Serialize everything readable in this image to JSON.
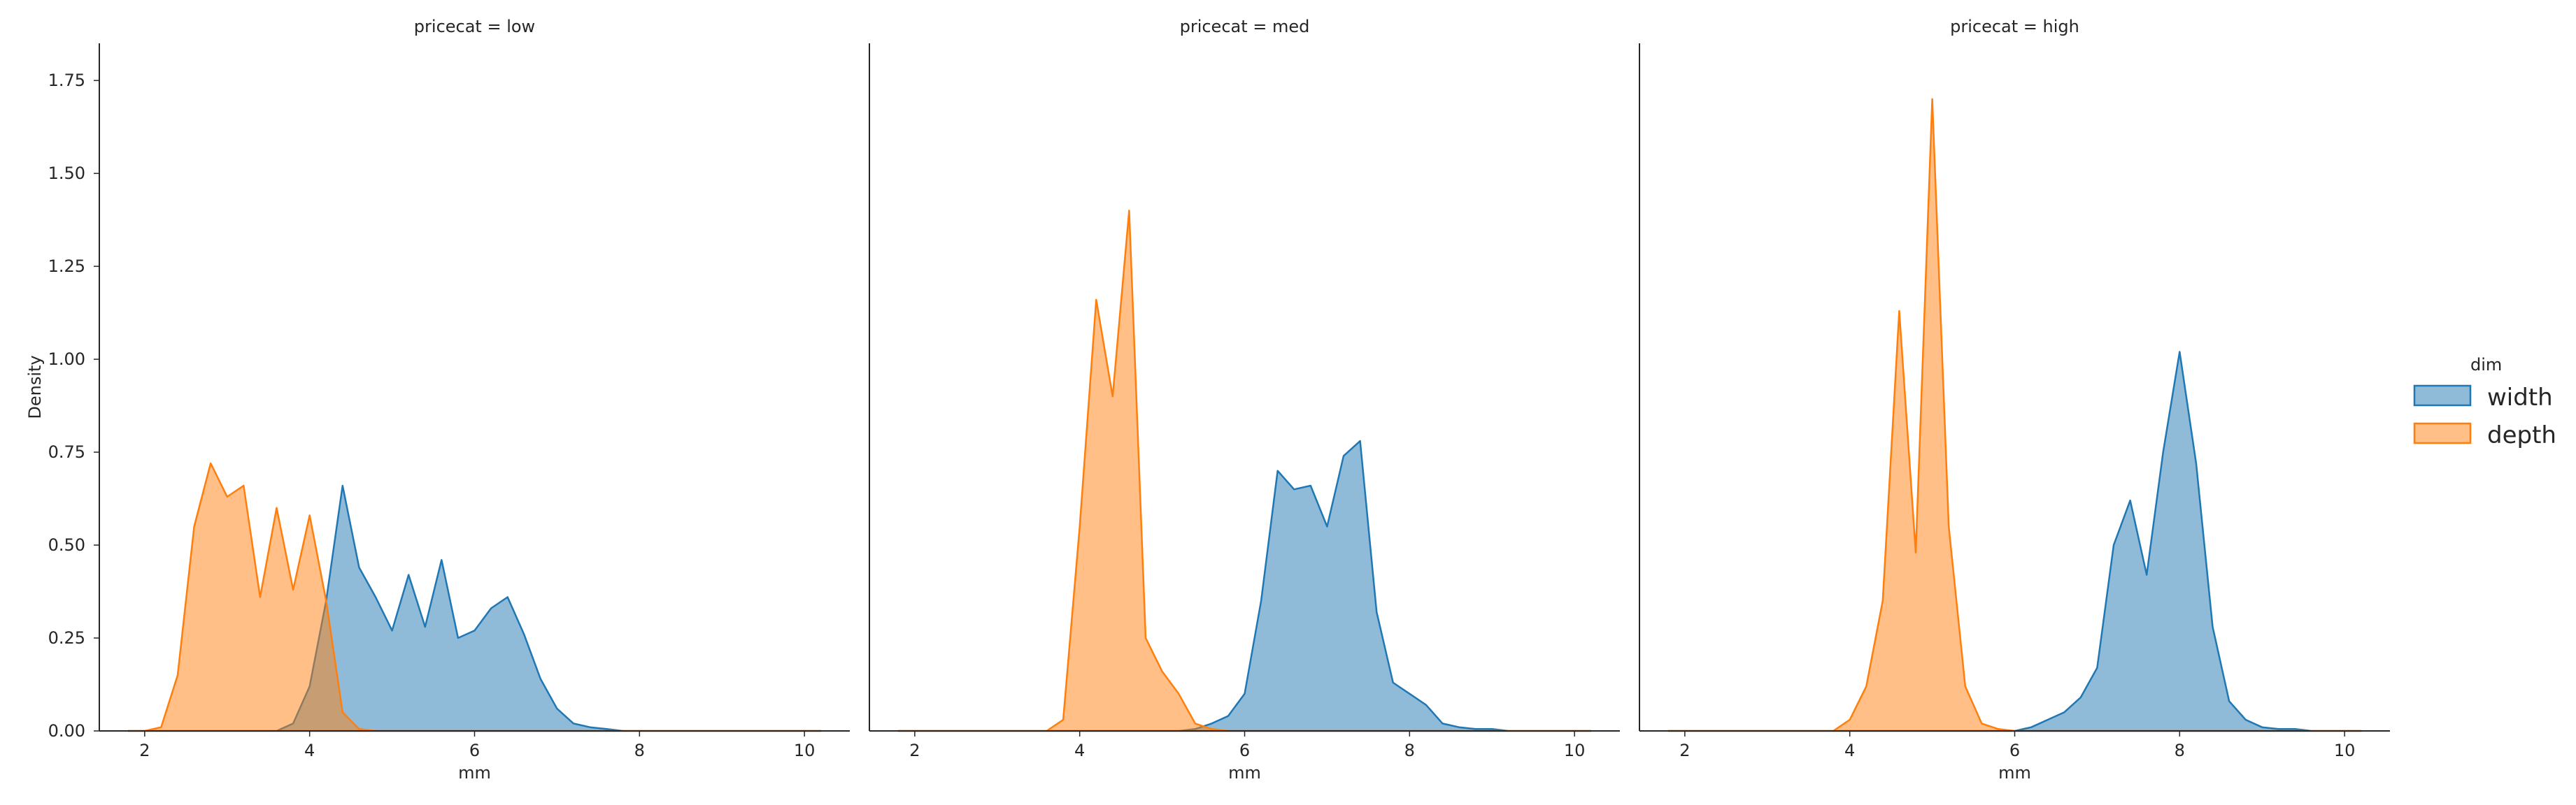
{
  "chart_data": {
    "type": "area",
    "x": [
      1.8,
      2.0,
      2.2,
      2.4,
      2.6,
      2.8,
      3.0,
      3.2,
      3.4,
      3.6,
      3.8,
      4.0,
      4.2,
      4.4,
      4.6,
      4.8,
      5.0,
      5.2,
      5.4,
      5.6,
      5.8,
      6.0,
      6.2,
      6.4,
      6.6,
      6.8,
      7.0,
      7.2,
      7.4,
      7.6,
      7.8,
      8.0,
      8.2,
      8.4,
      8.6,
      8.8,
      9.0,
      9.2,
      9.4,
      9.6,
      9.8,
      10.0,
      10.2
    ],
    "xlabel": "mm",
    "ylabel": "Density",
    "xlim": [
      1.45,
      10.55
    ],
    "ylim": [
      0,
      1.85
    ],
    "xticks": [
      "2",
      "4",
      "6",
      "8",
      "10"
    ],
    "yticks": [
      "0.00",
      "0.25",
      "0.50",
      "0.75",
      "1.00",
      "1.25",
      "1.50",
      "1.75"
    ],
    "grid": false,
    "legend": {
      "title": "dim",
      "placement": "right",
      "entries": [
        {
          "label": "width",
          "color": "#1f77b4"
        },
        {
          "label": "depth",
          "color": "#ff7f0e"
        }
      ]
    },
    "panels": [
      {
        "title": "pricecat = low",
        "series": [
          {
            "name": "width",
            "color": "#1f77b4",
            "values": [
              0,
              0,
              0,
              0,
              0,
              0,
              0,
              0,
              0,
              0,
              0.02,
              0.12,
              0.35,
              0.66,
              0.44,
              0.36,
              0.27,
              0.42,
              0.28,
              0.46,
              0.25,
              0.27,
              0.33,
              0.36,
              0.26,
              0.14,
              0.06,
              0.02,
              0.01,
              0.005,
              0,
              0,
              0,
              0,
              0,
              0,
              0,
              0,
              0,
              0,
              0,
              0,
              0
            ]
          },
          {
            "name": "depth",
            "color": "#ff7f0e",
            "values": [
              0,
              0,
              0.01,
              0.15,
              0.55,
              0.72,
              0.63,
              0.66,
              0.36,
              0.6,
              0.38,
              0.58,
              0.35,
              0.05,
              0.005,
              0,
              0,
              0,
              0,
              0,
              0,
              0,
              0,
              0,
              0,
              0,
              0,
              0,
              0,
              0,
              0,
              0,
              0,
              0,
              0,
              0,
              0,
              0,
              0,
              0,
              0,
              0,
              0
            ]
          }
        ]
      },
      {
        "title": "pricecat = med",
        "series": [
          {
            "name": "width",
            "color": "#1f77b4",
            "values": [
              0,
              0,
              0,
              0,
              0,
              0,
              0,
              0,
              0,
              0,
              0,
              0,
              0,
              0,
              0,
              0,
              0,
              0,
              0.005,
              0.02,
              0.04,
              0.1,
              0.35,
              0.7,
              0.65,
              0.66,
              0.55,
              0.74,
              0.78,
              0.32,
              0.13,
              0.1,
              0.07,
              0.02,
              0.01,
              0.005,
              0.005,
              0,
              0,
              0,
              0,
              0,
              0
            ]
          },
          {
            "name": "depth",
            "color": "#ff7f0e",
            "values": [
              0,
              0,
              0,
              0,
              0,
              0,
              0,
              0,
              0,
              0,
              0.03,
              0.55,
              1.16,
              0.9,
              1.4,
              0.25,
              0.16,
              0.1,
              0.02,
              0.005,
              0,
              0,
              0,
              0,
              0,
              0,
              0,
              0,
              0,
              0,
              0,
              0,
              0,
              0,
              0,
              0,
              0,
              0,
              0,
              0,
              0,
              0,
              0
            ]
          }
        ]
      },
      {
        "title": "pricecat = high",
        "series": [
          {
            "name": "width",
            "color": "#1f77b4",
            "values": [
              0,
              0,
              0,
              0,
              0,
              0,
              0,
              0,
              0,
              0,
              0,
              0,
              0,
              0,
              0,
              0,
              0,
              0,
              0,
              0,
              0,
              0,
              0.01,
              0.03,
              0.05,
              0.09,
              0.17,
              0.5,
              0.62,
              0.42,
              0.75,
              1.02,
              0.72,
              0.28,
              0.08,
              0.03,
              0.01,
              0.005,
              0.005,
              0,
              0,
              0,
              0
            ]
          },
          {
            "name": "depth",
            "color": "#ff7f0e",
            "values": [
              0,
              0,
              0,
              0,
              0,
              0,
              0,
              0,
              0,
              0,
              0,
              0.03,
              0.12,
              0.35,
              1.13,
              0.48,
              1.7,
              0.55,
              0.12,
              0.02,
              0.005,
              0,
              0,
              0,
              0,
              0,
              0,
              0,
              0,
              0,
              0,
              0,
              0,
              0,
              0,
              0,
              0,
              0,
              0,
              0,
              0,
              0,
              0
            ]
          }
        ]
      }
    ]
  }
}
